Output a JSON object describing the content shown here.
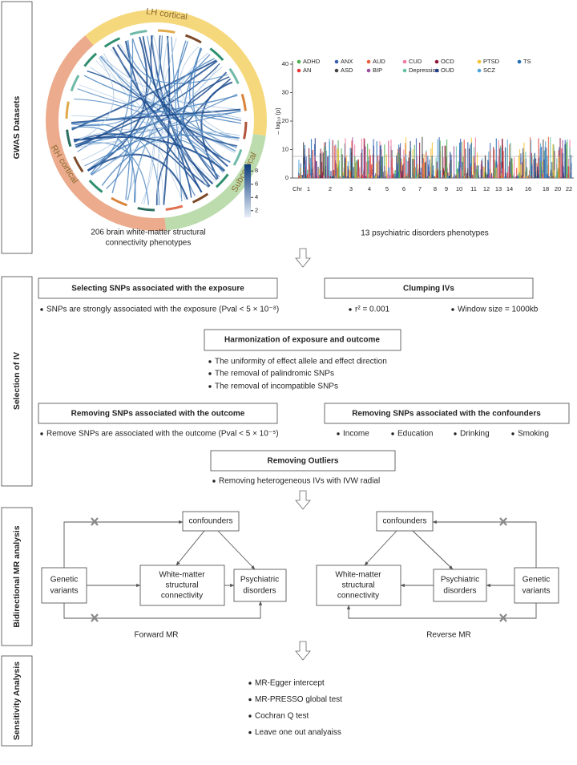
{
  "sections": [
    "GWAS Datasets",
    "Selection of IV",
    "Bidirectional MR analysis",
    "Sensitivity Analysis"
  ],
  "gwas": {
    "circle": {
      "regions": [
        "LH cortical",
        "Subcortical",
        "RH cortical"
      ],
      "colorbar_ticks": [
        2,
        4,
        6,
        8
      ],
      "caption": [
        "206 brain white-matter structural",
        "connectivity phenotypes"
      ]
    },
    "manhattan": {
      "legend": [
        {
          "name": "ADHD",
          "color": "#4caf50"
        },
        {
          "name": "AN",
          "color": "#e53935"
        },
        {
          "name": "ANX",
          "color": "#3a5fb0"
        },
        {
          "name": "ASD",
          "color": "#444444"
        },
        {
          "name": "AUD",
          "color": "#e8603c"
        },
        {
          "name": "BIP",
          "color": "#9c4f9e"
        },
        {
          "name": "CUD",
          "color": "#f07ca0"
        },
        {
          "name": "Depression",
          "color": "#66c2a5"
        },
        {
          "name": "OCD",
          "color": "#8b1a3a"
        },
        {
          "name": "OUD",
          "color": "#1f3c88"
        },
        {
          "name": "PTSD",
          "color": "#f2c12e"
        },
        {
          "name": "SCZ",
          "color": "#4fa3d9"
        },
        {
          "name": "TS",
          "color": "#1f6fb5"
        }
      ],
      "y_label": "– log₁₀ (p)",
      "yticks": [
        0,
        10,
        20,
        30,
        40
      ],
      "x_label": "Chr",
      "chromosomes": [
        "1",
        "2",
        "3",
        "4",
        "5",
        "6",
        "7",
        "8",
        "9",
        "10",
        "11",
        "12",
        "13",
        "14",
        "16",
        "18",
        "20",
        "22"
      ],
      "caption": "13 psychiatric disorders phenotypes"
    }
  },
  "selection": {
    "exposure": {
      "title": "Selecting SNPs associated with the exposure",
      "bullets": [
        "SNPs are strongly associated with the exposure (Pval < 5 × 10⁻⁸)"
      ]
    },
    "clumping": {
      "title": "Clumping IVs",
      "bullets": [
        "r² = 0.001",
        "Window size = 1000kb"
      ]
    },
    "harmonization": {
      "title": "Harmonization of exposure and outcome",
      "bullets": [
        "The uniformity of effect allele and effect direction",
        "The removal of palindromic SNPs",
        "The removal of incompatible SNPs"
      ]
    },
    "outcome": {
      "title": "Removing SNPs associated with the outcome",
      "bullets": [
        "Remove SNPs are associated with the outcome (Pval < 5 × 10⁻⁵)"
      ]
    },
    "confounders": {
      "title": "Removing SNPs associated with the confounders",
      "bullets": [
        "Income",
        "Education",
        "Drinking",
        "Smoking"
      ]
    },
    "outliers": {
      "title": "Removing Outliers",
      "bullets": [
        "Removing heterogeneous IVs with IVW radial"
      ]
    }
  },
  "mr": {
    "forward": {
      "confounders": "confounders",
      "genetic": [
        "Genetic",
        "variants"
      ],
      "exposure": [
        "White-matter",
        "structural",
        "connectivity"
      ],
      "outcome": [
        "Psychiatric",
        "disorders"
      ],
      "label": "Forward MR"
    },
    "reverse": {
      "confounders": "confounders",
      "genetic": [
        "Genetic",
        "variants"
      ],
      "outcome": [
        "White-matter",
        "structural",
        "connectivity"
      ],
      "exposure": [
        "Psychiatric",
        "disorders"
      ],
      "label": "Reverse MR"
    }
  },
  "sensitivity": {
    "bullets": [
      "MR-Egger intercept",
      "MR-PRESSO global test",
      "Cochran Q test",
      "Leave one out analyaiss"
    ]
  }
}
